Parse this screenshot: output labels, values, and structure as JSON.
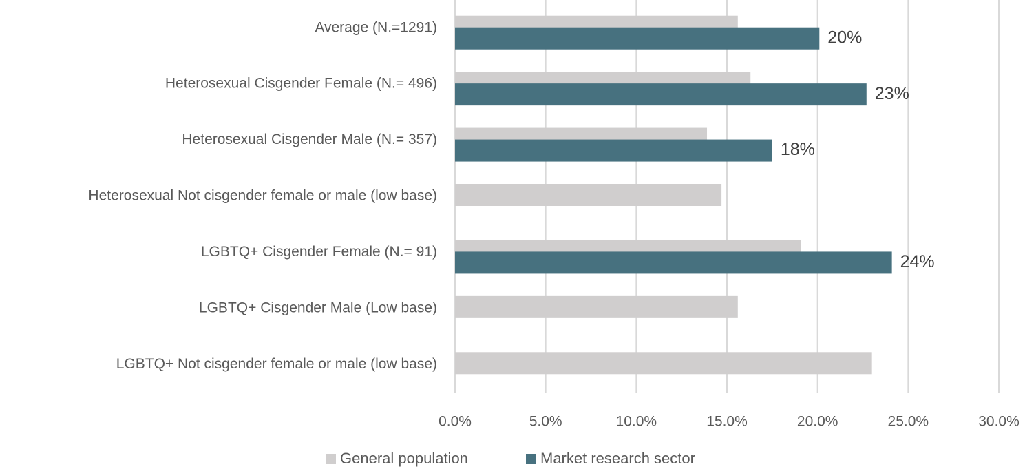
{
  "chart_data": {
    "type": "bar",
    "orientation": "horizontal",
    "categories": [
      "Average (N.=1291)",
      "Heterosexual Cisgender Female (N.= 496)",
      "Heterosexual Cisgender Male (N.= 357)",
      "Heterosexual Not cisgender female or male  (low base)",
      "LGBTQ+ Cisgender Female  (N.= 91)",
      "LGBTQ+ Cisgender Male  (Low base)",
      "LGBTQ+ Not cisgender female or male  (low base)"
    ],
    "series": [
      {
        "name": "General population",
        "color": "#d0cece",
        "values": [
          15.6,
          16.3,
          13.9,
          14.7,
          19.1,
          15.6,
          23.0
        ]
      },
      {
        "name": "Market research sector",
        "color": "#47717f",
        "values": [
          20.1,
          22.7,
          17.5,
          null,
          24.1,
          null,
          null
        ],
        "value_labels": [
          "20%",
          "23%",
          "18%",
          null,
          "24%",
          null,
          null
        ]
      }
    ],
    "xlim": [
      0,
      30
    ],
    "xticks": [
      {
        "value": 0,
        "label": "0.0%"
      },
      {
        "value": 5,
        "label": "5.0%"
      },
      {
        "value": 10,
        "label": "10.0%"
      },
      {
        "value": 15,
        "label": "15.0%"
      },
      {
        "value": 20,
        "label": "20.0%"
      },
      {
        "value": 25,
        "label": "25.0%"
      },
      {
        "value": 30,
        "label": "30.0%"
      }
    ],
    "grid": true,
    "legend": "bottom"
  }
}
